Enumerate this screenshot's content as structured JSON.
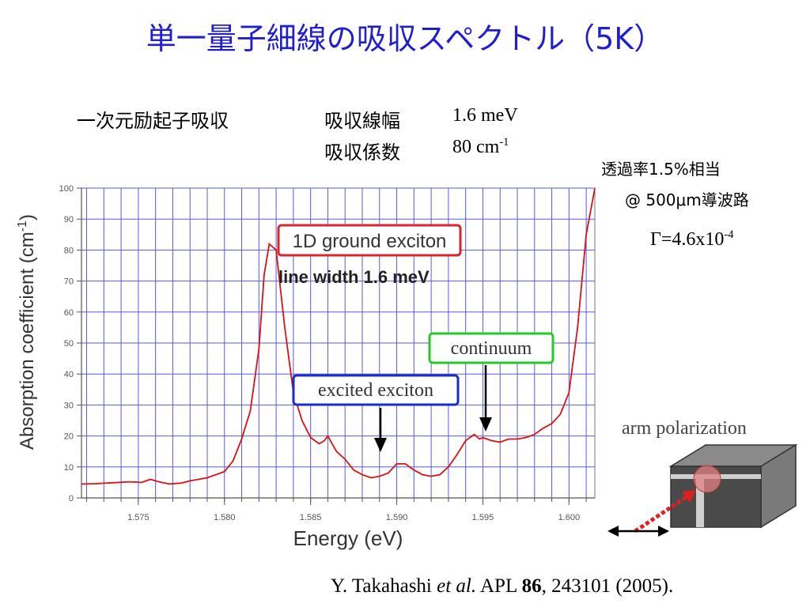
{
  "title": "単一量子細線の吸収スペクトル（5K）",
  "header": {
    "section_label": "一次元励起子吸収",
    "linewidth_label": "吸収線幅",
    "linewidth_value": "1.6 meV",
    "coeff_label": "吸収係数",
    "coeff_value_base": "80 cm",
    "coeff_value_exp": "-1"
  },
  "notes": {
    "transmittance": "透過率1.5%相当",
    "waveguide": "@ 500μm導波路",
    "gamma_base": "Γ=4.6x10",
    "gamma_exp": "-4"
  },
  "annotations": {
    "ground_exciton": "1D ground exciton",
    "line_width": "line width 1.6 meV",
    "continuum": "continuum",
    "excited_exciton": "excited exciton",
    "arm_polarization": "arm polarization"
  },
  "citation": {
    "author": "Y. Takahashi",
    "etal": "et al.",
    "journal": "APL",
    "volume": "86",
    "pages": ", 243101 (2005)."
  },
  "colors": {
    "title": "#1f1fcc",
    "curve": "#dd1111",
    "grid": "#5a5ae0",
    "ground_box": "#d9262e",
    "continuum_box": "#22cc22",
    "excited_box": "#1a2bd0"
  },
  "chart_data": {
    "type": "line",
    "xlabel": "Energy (eV)",
    "ylabel": "Absorption coefficient (cm",
    "ylabel_exp": "-1",
    "ylabel_close": ")",
    "xlim": [
      1.5717,
      1.6015
    ],
    "ylim": [
      0,
      100
    ],
    "xticks": [
      1.575,
      1.58,
      1.585,
      1.59,
      1.595,
      1.6
    ],
    "xtick_labels": [
      "1.575",
      "1.580",
      "1.585",
      "1.590",
      "1.595",
      "1.600"
    ],
    "yticks": [
      0,
      10,
      20,
      30,
      40,
      50,
      60,
      70,
      80,
      90,
      100
    ],
    "ytick_labels": [
      "0",
      "10",
      "20",
      "30",
      "40",
      "50",
      "60",
      "70",
      "80",
      "90",
      "100"
    ],
    "grid": true,
    "series": [
      {
        "x": [
          1.5717,
          1.5725,
          1.5735,
          1.5745,
          1.5752,
          1.5757,
          1.5762,
          1.5768,
          1.5775,
          1.578,
          1.579,
          1.58,
          1.5805,
          1.581,
          1.5815,
          1.582,
          1.5823,
          1.5826,
          1.583,
          1.5835,
          1.584,
          1.5845,
          1.585,
          1.5855,
          1.5858,
          1.586,
          1.5865,
          1.587,
          1.5875,
          1.588,
          1.5885,
          1.589,
          1.5895,
          1.59,
          1.5905,
          1.591,
          1.5915,
          1.592,
          1.5925,
          1.593,
          1.5935,
          1.594,
          1.5945,
          1.5948,
          1.595,
          1.5955,
          1.596,
          1.5965,
          1.597,
          1.5975,
          1.598,
          1.5985,
          1.599,
          1.5995,
          1.6,
          1.6005,
          1.601,
          1.6015
        ],
        "y": [
          4.5,
          4.6,
          4.9,
          5.2,
          5.0,
          6.0,
          5.2,
          4.5,
          4.8,
          5.5,
          6.5,
          8.5,
          12,
          19,
          28,
          48,
          72,
          82,
          80,
          55,
          34,
          25,
          19.5,
          17.5,
          18.5,
          20,
          15,
          12.5,
          9,
          7.5,
          6.5,
          7,
          8,
          11,
          11,
          9,
          7.5,
          7,
          7.5,
          10,
          14,
          18.5,
          20.5,
          19,
          19.5,
          18.5,
          18,
          19,
          19,
          19.5,
          20.5,
          22.5,
          24,
          27,
          34,
          55,
          85,
          100
        ]
      }
    ]
  }
}
